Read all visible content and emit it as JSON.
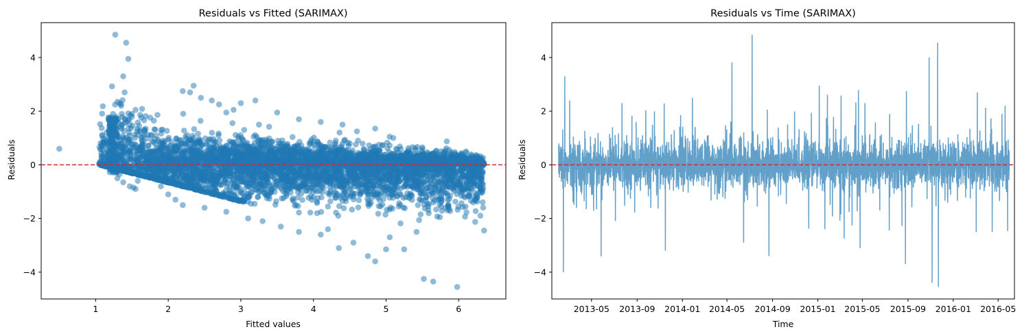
{
  "chart_data": [
    {
      "type": "scatter",
      "title": "Residuals vs Fitted (SARIMAX)",
      "xlabel": "Fitted values",
      "ylabel": "Residuals",
      "xlim": [
        0.25,
        6.65
      ],
      "ylim": [
        -5.0,
        5.3
      ],
      "xticks": [
        1,
        2,
        3,
        4,
        5,
        6
      ],
      "yticks": [
        -4,
        -2,
        0,
        2,
        4
      ],
      "grid": false,
      "marker_color": "#1f77b4",
      "marker_alpha": 0.5,
      "reference_line": {
        "y": 0,
        "color": "#d62728",
        "style": "dashed"
      },
      "series": [
        {
          "x": [
            0.5,
            1.05,
            1.08,
            1.1,
            1.15,
            1.18,
            1.2,
            1.22,
            1.24,
            1.25,
            1.27,
            1.3,
            1.33,
            1.35,
            1.38,
            1.4,
            1.42,
            1.45,
            1.48,
            1.5,
            1.55,
            1.6,
            1.26,
            1.36,
            1.4,
            1.45,
            1.37,
            1.29,
            1.33,
            1.58,
            1.3,
            1.38,
            1.47,
            1.52,
            1.55,
            2.2,
            2.3,
            2.35,
            2.45,
            2.6,
            2.7,
            2.8,
            2.9,
            3.0,
            3.2,
            3.25,
            3.5,
            3.8,
            4.1,
            4.4,
            4.6,
            4.85,
            5.1,
            5.5,
            5.9,
            6.2,
            2.0,
            2.1,
            2.2,
            2.5,
            2.8,
            3.1,
            3.3,
            3.55,
            3.8,
            4.1,
            4.2,
            4.35,
            4.55,
            4.75,
            4.85,
            5.0,
            5.05,
            5.25,
            5.42,
            5.52,
            5.65,
            5.98,
            6.35,
            1.9,
            2.5,
            3.0,
            4.0,
            5.0,
            5.8,
            6.2,
            6.3,
            2.3,
            3.5,
            4.5,
            5.5,
            6.1
          ],
          "y": [
            0.6,
            0.05,
            0.7,
            0.55,
            1.2,
            1.3,
            1.25,
            1.6,
            1.9,
            1.45,
            4.85,
            2.35,
            2.3,
            2.2,
            3.3,
            2.7,
            4.55,
            3.95,
            1.85,
            1.9,
            2.05,
            1.45,
            1.7,
            1.9,
            1.55,
            1.7,
            -0.2,
            -0.3,
            -0.35,
            -0.6,
            -0.5,
            -0.65,
            -0.8,
            -0.85,
            -0.9,
            2.75,
            2.7,
            2.95,
            2.5,
            2.4,
            2.25,
            1.95,
            2.05,
            2.3,
            2.4,
            1.5,
            1.95,
            1.7,
            1.6,
            1.5,
            1.25,
            1.35,
            1.0,
            0.65,
            0.4,
            0.3,
            -1.1,
            -1.3,
            -1.5,
            -1.6,
            -1.75,
            -2.0,
            -2.1,
            -2.3,
            -2.5,
            -2.6,
            -2.4,
            -3.1,
            -2.9,
            -3.4,
            -3.6,
            -3.15,
            -2.7,
            -3.15,
            -2.5,
            -4.25,
            -4.35,
            -4.55,
            -2.45,
            -0.8,
            -0.9,
            -1.0,
            -1.2,
            -1.1,
            -1.0,
            -1.4,
            -0.9,
            -0.7,
            -0.6,
            0.8,
            0.6,
            0.5
          ]
        }
      ]
    },
    {
      "type": "line",
      "title": "Residuals vs Time (SARIMAX)",
      "xlabel": "Time",
      "ylabel": "Residuals",
      "ylim": [
        -5.0,
        5.3
      ],
      "xlim": [
        "2013-01-14",
        "2016-06-14"
      ],
      "xticks": [
        "2013-05",
        "2013-09",
        "2014-01",
        "2014-05",
        "2014-09",
        "2015-01",
        "2015-05",
        "2015-09",
        "2016-01",
        "2016-05"
      ],
      "yticks": [
        -4,
        -2,
        0,
        2,
        4
      ],
      "grid": false,
      "line_color": "#1f77b4",
      "line_alpha": 0.7,
      "x_start": "2013-02-01",
      "x_end": "2016-05-31",
      "reference_line": {
        "y": 0,
        "color": "#d62728",
        "style": "dashed"
      },
      "spikes": [
        {
          "date": "2013-02-18",
          "value": 3.3
        },
        {
          "date": "2013-02-14",
          "value": -4.0
        },
        {
          "date": "2013-03-03",
          "value": 2.4
        },
        {
          "date": "2013-07-22",
          "value": 2.3
        },
        {
          "date": "2013-11-16",
          "value": -3.2
        },
        {
          "date": "2014-01-28",
          "value": 2.5
        },
        {
          "date": "2014-06-15",
          "value": -2.9
        },
        {
          "date": "2014-07-08",
          "value": 4.85
        },
        {
          "date": "2014-08-22",
          "value": -3.4
        },
        {
          "date": "2015-01-05",
          "value": 2.95
        },
        {
          "date": "2015-01-20",
          "value": -2.4
        },
        {
          "date": "2015-05-08",
          "value": 2.3
        },
        {
          "date": "2015-04-25",
          "value": -3.1
        },
        {
          "date": "2015-08-28",
          "value": 2.75
        },
        {
          "date": "2015-08-25",
          "value": -3.7
        },
        {
          "date": "2015-10-28",
          "value": 4.0
        },
        {
          "date": "2015-11-05",
          "value": -4.4
        },
        {
          "date": "2015-11-20",
          "value": 4.55
        },
        {
          "date": "2015-11-22",
          "value": -4.55
        },
        {
          "date": "2016-03-06",
          "value": 2.7
        },
        {
          "date": "2016-04-15",
          "value": -2.5
        },
        {
          "date": "2016-05-20",
          "value": 2.2
        }
      ]
    }
  ]
}
